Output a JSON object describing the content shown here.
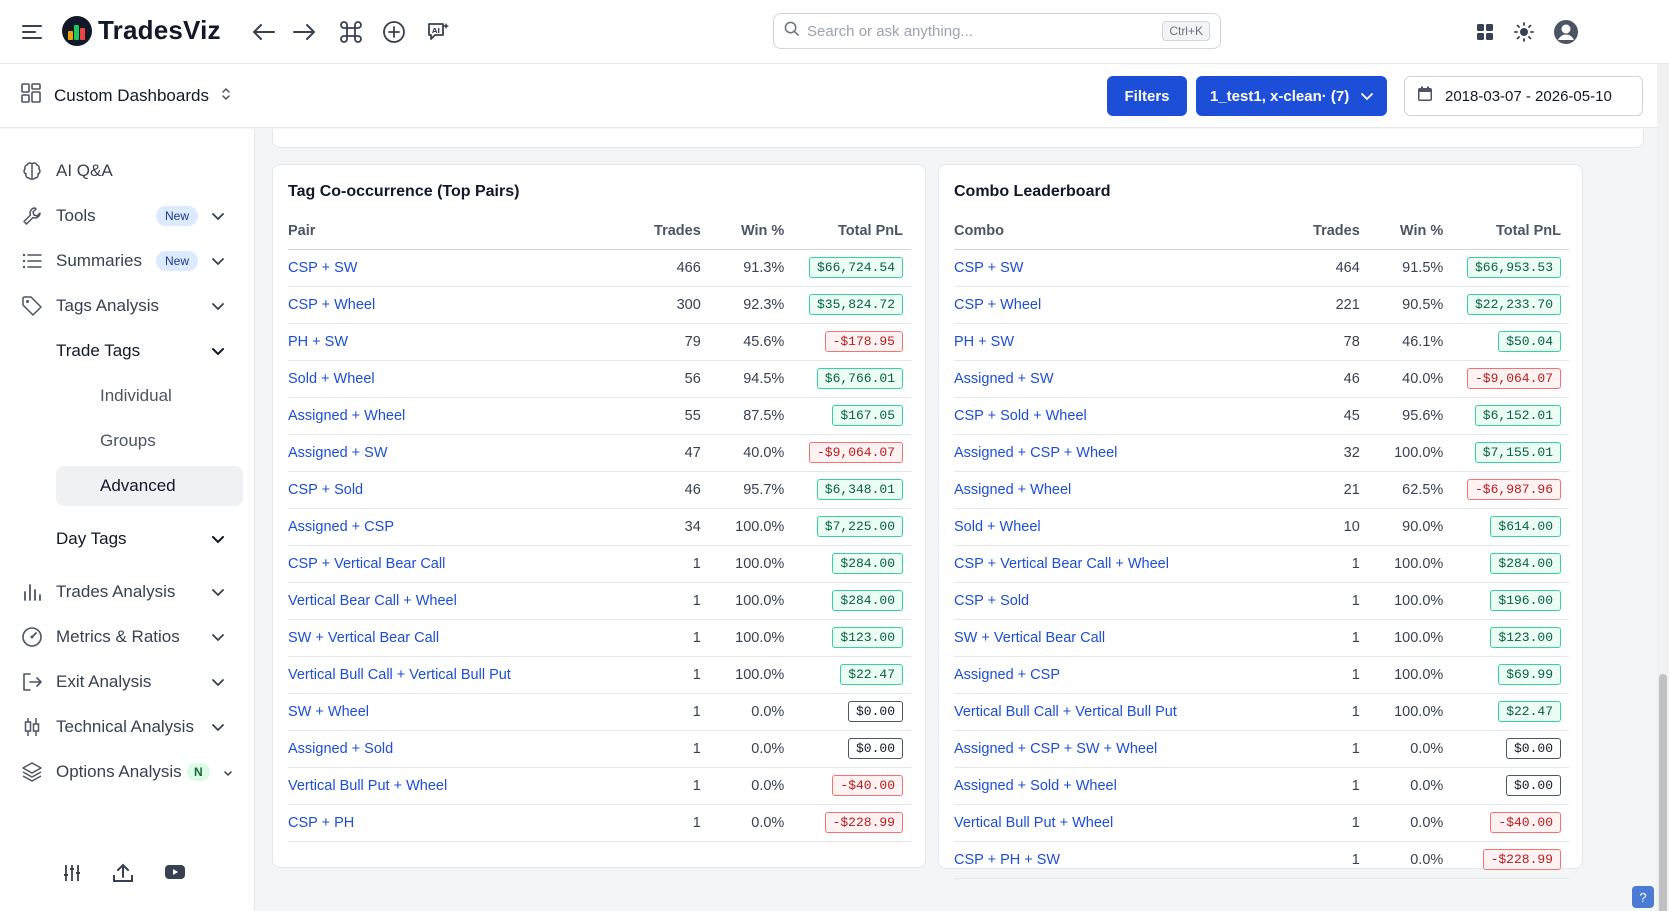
{
  "app": {
    "brand": "TradesViz"
  },
  "search": {
    "placeholder": "Search or ask anything...",
    "shortcut": "Ctrl+K"
  },
  "header": {
    "dashboard_label": "Custom Dashboards",
    "filters_label": "Filters",
    "account_filter": "1_test1, x-clean· (7)",
    "date_range": "2018-03-07 - 2026-05-10"
  },
  "sidebar": {
    "ai": "AI Q&A",
    "tools": "Tools",
    "summaries": "Summaries",
    "new_badge": "New",
    "tags_analysis": "Tags Analysis",
    "trade_tags": "Trade Tags",
    "individual": "Individual",
    "groups": "Groups",
    "advanced": "Advanced",
    "day_tags": "Day Tags",
    "trades_analysis": "Trades Analysis",
    "metrics": "Metrics & Ratios",
    "exit_analysis": "Exit Analysis",
    "technical_analysis": "Technical Analysis",
    "options_analysis": "Options Analysis",
    "n_badge": "N"
  },
  "cooccurrence": {
    "title": "Tag Co-occurrence (Top Pairs)",
    "headers": {
      "name": "Pair",
      "trades": "Trades",
      "win": "Win %",
      "pnl": "Total PnL"
    },
    "rows": [
      {
        "name": "CSP + SW",
        "trades": "466",
        "win": "91.3%",
        "pnl": "$66,724.54",
        "sign": "pos"
      },
      {
        "name": "CSP + Wheel",
        "trades": "300",
        "win": "92.3%",
        "pnl": "$35,824.72",
        "sign": "pos"
      },
      {
        "name": "PH + SW",
        "trades": "79",
        "win": "45.6%",
        "pnl": "-$178.95",
        "sign": "neg"
      },
      {
        "name": "Sold + Wheel",
        "trades": "56",
        "win": "94.5%",
        "pnl": "$6,766.01",
        "sign": "pos"
      },
      {
        "name": "Assigned + Wheel",
        "trades": "55",
        "win": "87.5%",
        "pnl": "$167.05",
        "sign": "pos"
      },
      {
        "name": "Assigned + SW",
        "trades": "47",
        "win": "40.0%",
        "pnl": "-$9,064.07",
        "sign": "neg"
      },
      {
        "name": "CSP + Sold",
        "trades": "46",
        "win": "95.7%",
        "pnl": "$6,348.01",
        "sign": "pos"
      },
      {
        "name": "Assigned + CSP",
        "trades": "34",
        "win": "100.0%",
        "pnl": "$7,225.00",
        "sign": "pos"
      },
      {
        "name": "CSP + Vertical Bear Call",
        "trades": "1",
        "win": "100.0%",
        "pnl": "$284.00",
        "sign": "pos"
      },
      {
        "name": "Vertical Bear Call + Wheel",
        "trades": "1",
        "win": "100.0%",
        "pnl": "$284.00",
        "sign": "pos"
      },
      {
        "name": "SW + Vertical Bear Call",
        "trades": "1",
        "win": "100.0%",
        "pnl": "$123.00",
        "sign": "pos"
      },
      {
        "name": "Vertical Bull Call + Vertical Bull Put",
        "trades": "1",
        "win": "100.0%",
        "pnl": "$22.47",
        "sign": "pos"
      },
      {
        "name": "SW + Wheel",
        "trades": "1",
        "win": "0.0%",
        "pnl": "$0.00",
        "sign": "zero"
      },
      {
        "name": "Assigned + Sold",
        "trades": "1",
        "win": "0.0%",
        "pnl": "$0.00",
        "sign": "zero"
      },
      {
        "name": "Vertical Bull Put + Wheel",
        "trades": "1",
        "win": "0.0%",
        "pnl": "-$40.00",
        "sign": "neg"
      },
      {
        "name": "CSP + PH",
        "trades": "1",
        "win": "0.0%",
        "pnl": "-$228.99",
        "sign": "neg"
      }
    ]
  },
  "leaderboard": {
    "title": "Combo Leaderboard",
    "headers": {
      "name": "Combo",
      "trades": "Trades",
      "win": "Win %",
      "pnl": "Total PnL"
    },
    "rows": [
      {
        "name": "CSP + SW",
        "trades": "464",
        "win": "91.5%",
        "pnl": "$66,953.53",
        "sign": "pos"
      },
      {
        "name": "CSP + Wheel",
        "trades": "221",
        "win": "90.5%",
        "pnl": "$22,233.70",
        "sign": "pos"
      },
      {
        "name": "PH + SW",
        "trades": "78",
        "win": "46.1%",
        "pnl": "$50.04",
        "sign": "pos"
      },
      {
        "name": "Assigned + SW",
        "trades": "46",
        "win": "40.0%",
        "pnl": "-$9,064.07",
        "sign": "neg"
      },
      {
        "name": "CSP + Sold + Wheel",
        "trades": "45",
        "win": "95.6%",
        "pnl": "$6,152.01",
        "sign": "pos"
      },
      {
        "name": "Assigned + CSP + Wheel",
        "trades": "32",
        "win": "100.0%",
        "pnl": "$7,155.01",
        "sign": "pos"
      },
      {
        "name": "Assigned + Wheel",
        "trades": "21",
        "win": "62.5%",
        "pnl": "-$6,987.96",
        "sign": "neg"
      },
      {
        "name": "Sold + Wheel",
        "trades": "10",
        "win": "90.0%",
        "pnl": "$614.00",
        "sign": "pos"
      },
      {
        "name": "CSP + Vertical Bear Call + Wheel",
        "trades": "1",
        "win": "100.0%",
        "pnl": "$284.00",
        "sign": "pos"
      },
      {
        "name": "CSP + Sold",
        "trades": "1",
        "win": "100.0%",
        "pnl": "$196.00",
        "sign": "pos"
      },
      {
        "name": "SW + Vertical Bear Call",
        "trades": "1",
        "win": "100.0%",
        "pnl": "$123.00",
        "sign": "pos"
      },
      {
        "name": "Assigned + CSP",
        "trades": "1",
        "win": "100.0%",
        "pnl": "$69.99",
        "sign": "pos"
      },
      {
        "name": "Vertical Bull Call + Vertical Bull Put",
        "trades": "1",
        "win": "100.0%",
        "pnl": "$22.47",
        "sign": "pos"
      },
      {
        "name": "Assigned + CSP + SW + Wheel",
        "trades": "1",
        "win": "0.0%",
        "pnl": "$0.00",
        "sign": "zero"
      },
      {
        "name": "Assigned + Sold + Wheel",
        "trades": "1",
        "win": "0.0%",
        "pnl": "$0.00",
        "sign": "zero"
      },
      {
        "name": "Vertical Bull Put + Wheel",
        "trades": "1",
        "win": "0.0%",
        "pnl": "-$40.00",
        "sign": "neg"
      },
      {
        "name": "CSP + PH + SW",
        "trades": "1",
        "win": "0.0%",
        "pnl": "-$228.99",
        "sign": "neg"
      }
    ]
  }
}
